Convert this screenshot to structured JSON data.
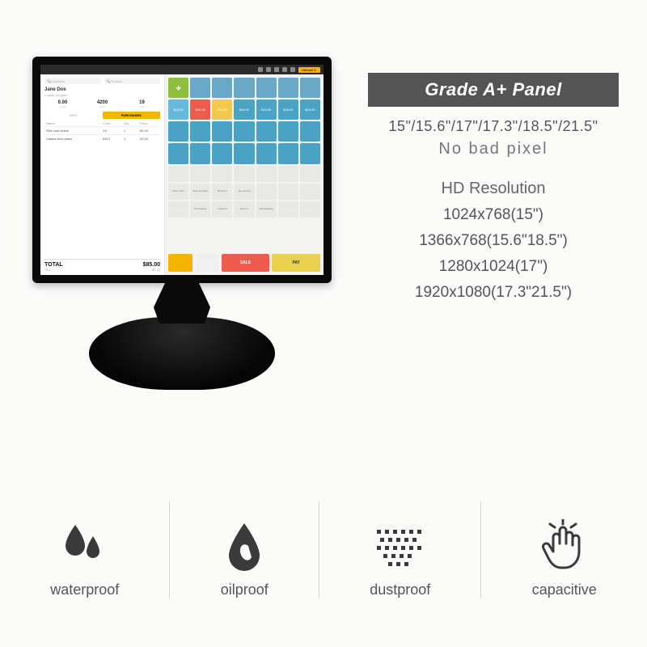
{
  "palette": {
    "page_bg": "#fbfbfa",
    "badge_bg": "#545454",
    "badge_fg": "#ffffff",
    "text_main": "#555555",
    "text_soft": "#777777",
    "divider": "#d6d6d4",
    "device_black": "#0a0a0a",
    "icon_dark": "#3a3a3a"
  },
  "spec_panel": {
    "badge": "Grade A+ Panel",
    "sizes": "15\"/15.6\"/17\"/17.3\"/18.5\"/21.5\"",
    "no_bad_pixel": "No bad pixel",
    "hd_label": "HD Resolution",
    "resolutions": [
      "1024x768(15\")",
      "1366x768(15.6\"18.5\")",
      "1280x1024(17\")",
      "1920x1080(17.3\"21.5\")"
    ],
    "font_sizes": {
      "badge": 22,
      "sizes": 18,
      "nobad": 20,
      "hd": 20,
      "res": 19
    }
  },
  "features": [
    {
      "icon": "droplets-icon",
      "label": "waterproof"
    },
    {
      "icon": "oil-drop-icon",
      "label": "oilproof"
    },
    {
      "icon": "dust-grid-icon",
      "label": "dustproof"
    },
    {
      "icon": "touch-hand-icon",
      "label": "capacitive"
    }
  ],
  "pos_ui": {
    "titlebar": {
      "icons": 6,
      "username": "Michael K."
    },
    "search": {
      "customer_ph": "Customer",
      "product_ph": "Product"
    },
    "customer": {
      "name": "Jane Doe",
      "subtitle": "Loyalty program"
    },
    "stats": [
      {
        "value": "0.00",
        "label": "credit"
      },
      {
        "value": "4200",
        "label": "points"
      },
      {
        "value": "19",
        "label": "visits"
      }
    ],
    "tabs": {
      "info": "INFO",
      "purchases": "PURCHASES",
      "active": "purchases"
    },
    "table": {
      "columns": [
        "Name",
        "Code",
        "Qty",
        "Price"
      ],
      "rows": [
        [
          "Red maxi dress",
          "XX",
          "1",
          "60.00"
        ],
        [
          "Classic blue jeans",
          "0613",
          "1",
          "25.00"
        ]
      ]
    },
    "totals": {
      "label": "TOTAL",
      "value": "$85.00",
      "tax_label": "TAX",
      "tax_value": "$7.20"
    },
    "product_grid": {
      "cols": 7,
      "add_cell_color": "#8fbf3f",
      "cells": [
        {
          "c": "#8fbf3f",
          "t": "+"
        },
        {
          "c": "#6aa8c7",
          "t": ""
        },
        {
          "c": "#6aa8c7",
          "t": ""
        },
        {
          "c": "#6aa8c7",
          "t": ""
        },
        {
          "c": "#6aa8c7",
          "t": ""
        },
        {
          "c": "#6aa8c7",
          "t": ""
        },
        {
          "c": "#6aa8c7",
          "t": ""
        },
        {
          "c": "#66b9d9",
          "t": "$16.00"
        },
        {
          "c": "#ef5b4c",
          "t": "$16.00"
        },
        {
          "c": "#f3c94b",
          "t": "$16.00"
        },
        {
          "c": "#4aa3c4",
          "t": "$16.00"
        },
        {
          "c": "#4aa3c4",
          "t": "$16.00"
        },
        {
          "c": "#4aa3c4",
          "t": "$16.00"
        },
        {
          "c": "#4aa3c4",
          "t": "$16.00"
        },
        {
          "c": "#4aa3c4",
          "t": ""
        },
        {
          "c": "#4aa3c4",
          "t": ""
        },
        {
          "c": "#4aa3c4",
          "t": ""
        },
        {
          "c": "#4aa3c4",
          "t": ""
        },
        {
          "c": "#4aa3c4",
          "t": ""
        },
        {
          "c": "#4aa3c4",
          "t": ""
        },
        {
          "c": "#4aa3c4",
          "t": ""
        },
        {
          "c": "#4aa3c4",
          "t": ""
        },
        {
          "c": "#4aa3c4",
          "t": ""
        },
        {
          "c": "#4aa3c4",
          "t": ""
        },
        {
          "c": "#4aa3c4",
          "t": ""
        },
        {
          "c": "#4aa3c4",
          "t": ""
        },
        {
          "c": "#4aa3c4",
          "t": ""
        },
        {
          "c": "#4aa3c4",
          "t": ""
        }
      ],
      "util_row1": [
        "",
        "",
        "",
        "",
        "",
        "",
        ""
      ],
      "util_row2": [
        "Save order",
        "Save as today",
        "Discount",
        "Tax exempt",
        "",
        ""
      ],
      "util_row3": [
        "",
        "Promotions",
        "Coupons",
        "Returns",
        "Add shipping",
        ""
      ]
    },
    "action_bar": {
      "open_color": "#f4b400",
      "open_label": "",
      "pay_color": "#e8d24a",
      "pay_label": "PAY",
      "sale_color": "#ef5b4c",
      "sale_label": "SALE",
      "menu_color": "#efefef"
    }
  }
}
